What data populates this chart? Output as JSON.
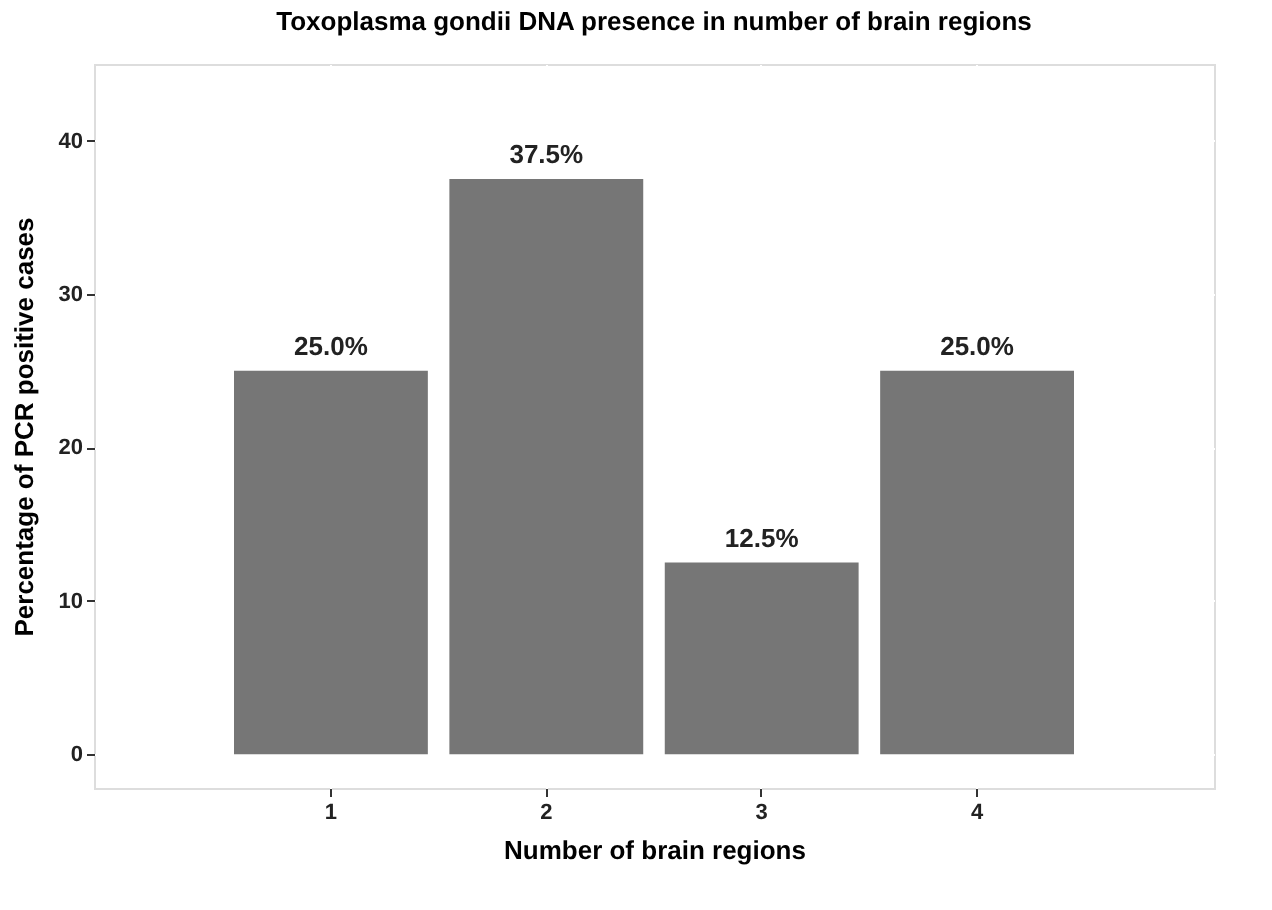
{
  "chart_data": {
    "type": "bar",
    "title": "Toxoplasma gondii DNA presence in number of brain regions",
    "xlabel": "Number of brain regions",
    "ylabel": "Percentage of PCR positive cases",
    "categories": [
      "1",
      "2",
      "3",
      "4"
    ],
    "values": [
      25.0,
      37.5,
      12.5,
      25.0
    ],
    "value_labels": [
      "25.0%",
      "37.5%",
      "12.5%",
      "25.0%"
    ],
    "color": "#767676",
    "ylim": [
      -2.2,
      45
    ],
    "yticks": [
      0,
      10,
      20,
      30,
      40
    ],
    "grid": true
  }
}
